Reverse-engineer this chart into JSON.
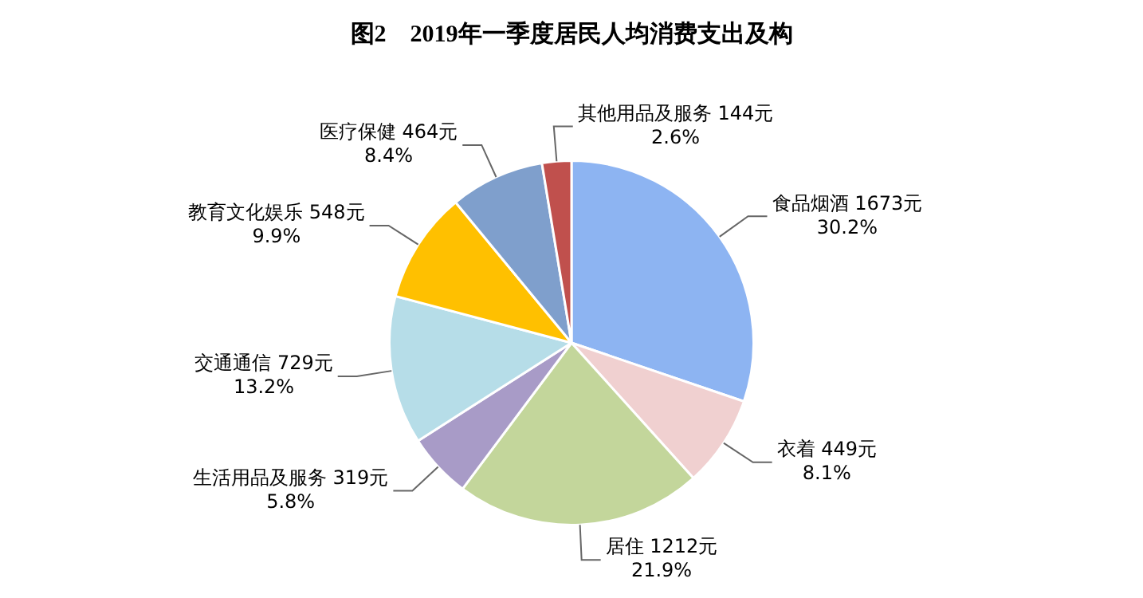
{
  "chart_data": {
    "type": "pie",
    "title": "图2　2019年一季度居民人均消费支出及构",
    "categories": [
      "食品烟酒",
      "衣着",
      "居住",
      "生活用品及服务",
      "交通通信",
      "教育文化娱乐",
      "医疗保健",
      "其他用品及服务"
    ],
    "values": [
      1673,
      449,
      1212,
      319,
      729,
      548,
      464,
      144
    ],
    "value_labels": [
      "1673元\n30.2%",
      "449元\n8.1%",
      "1212元\n21.9%",
      "319元\n5.8%",
      "729元\n13.2%",
      "548元\n9.9%",
      "464元\n8.4%",
      "144元\n2.6%"
    ],
    "colors": [
      "#8db4f2",
      "#f0d0d0",
      "#c3d69b",
      "#a89bc7",
      "#b6dde8",
      "#ffc000",
      "#7f9fcc",
      "#c0504d"
    ],
    "legend": false
  }
}
